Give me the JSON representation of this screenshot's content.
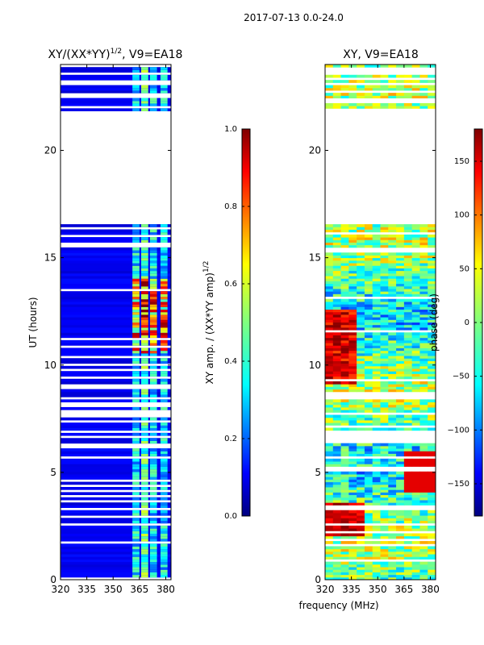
{
  "figure": {
    "suptitle": "2017-07-13 0.0-24.0",
    "xlabel": "frequency (MHz)"
  },
  "colors": {
    "jet": [
      "#00007f",
      "#0000ff",
      "#007fff",
      "#00ffff",
      "#7fff7f",
      "#ffff00",
      "#ff7f00",
      "#ff0000",
      "#7f0000"
    ],
    "axis": "#000000",
    "background": "#ffffff"
  },
  "chart_data": [
    {
      "type": "heatmap",
      "title_main": "XY/(XX*YY)",
      "title_sup": "1/2",
      "title_tail": ", V9=EA18",
      "ylabel": "UT (hours)",
      "xlabel": "",
      "x_ticks": [
        "320",
        "335",
        "350",
        "365",
        "380"
      ],
      "x_tick_values": [
        320,
        335,
        350,
        365,
        380
      ],
      "xlim": [
        320,
        383
      ],
      "y_ticks": [
        "0",
        "5",
        "10",
        "15",
        "20"
      ],
      "y_tick_values": [
        0,
        5,
        10,
        15,
        20
      ],
      "ylim": [
        0,
        24
      ],
      "gap_hours": [
        16.5,
        21.8
      ],
      "active_channels_MHz": [
        [
          361,
          365
        ],
        [
          366,
          370
        ],
        [
          371,
          375
        ],
        [
          377,
          381
        ]
      ],
      "colorbar": {
        "label_main": "XY amp. / (XX*YY amp)",
        "label_sup": "1/2",
        "range": [
          0.0,
          1.0
        ],
        "tick_values": [
          0.0,
          0.2,
          0.4,
          0.6,
          0.8,
          1.0
        ],
        "tick_labels": [
          "0.0",
          "0.2",
          "0.4",
          "0.6",
          "0.8",
          "1.0"
        ]
      }
    },
    {
      "type": "heatmap",
      "title_main": "XY, V9=EA18",
      "xlabel": "frequency (MHz)",
      "x_ticks": [
        "320",
        "335",
        "350",
        "365",
        "380"
      ],
      "x_tick_values": [
        320,
        335,
        350,
        365,
        380
      ],
      "xlim": [
        320,
        383
      ],
      "y_ticks": [
        "0",
        "5",
        "10",
        "15",
        "20"
      ],
      "y_tick_values": [
        0,
        5,
        10,
        15,
        20
      ],
      "ylim": [
        0,
        24
      ],
      "gap_hours": [
        16.5,
        21.8
      ],
      "colorbar": {
        "label": "phase (deg)",
        "range": [
          -180,
          180
        ],
        "tick_values": [
          -150,
          -100,
          -50,
          0,
          50,
          100,
          150
        ],
        "tick_labels": [
          "−150",
          "−100",
          "−50",
          "0",
          "50",
          "100",
          "150"
        ]
      }
    }
  ]
}
